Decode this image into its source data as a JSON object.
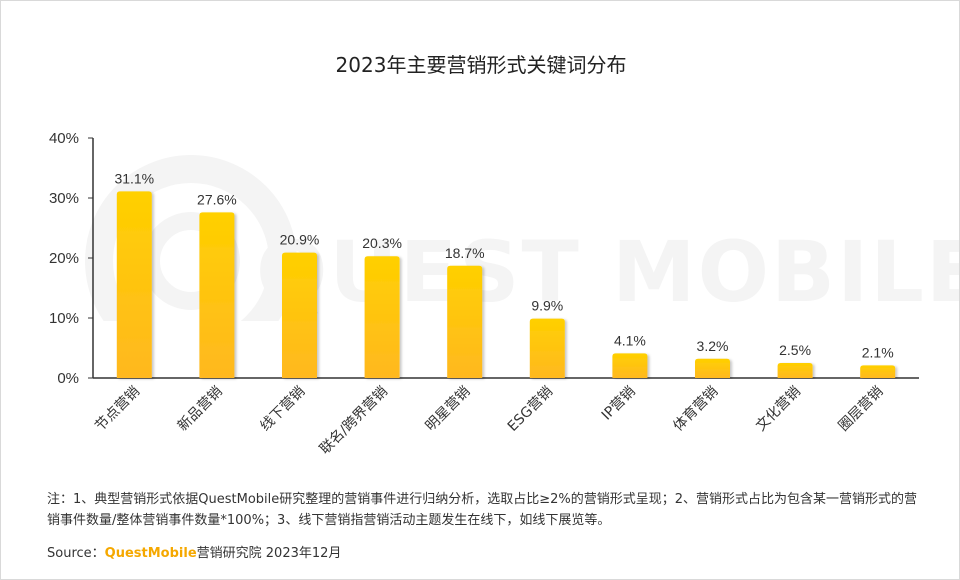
{
  "chart_data": {
    "type": "bar",
    "title": "2023年主要营销形式关键词分布",
    "categories": [
      "节点营销",
      "新品营销",
      "线下营销",
      "联名/跨界营销",
      "明星营销",
      "ESG营销",
      "IP营销",
      "体育营销",
      "文化营销",
      "圈层营销"
    ],
    "values": [
      31.1,
      27.6,
      20.9,
      20.3,
      18.7,
      9.9,
      4.1,
      3.2,
      2.5,
      2.1
    ],
    "value_labels": [
      "31.1%",
      "27.6%",
      "20.9%",
      "20.3%",
      "18.7%",
      "9.9%",
      "4.1%",
      "3.2%",
      "2.5%",
      "2.1%"
    ],
    "y_ticks": [
      0,
      10,
      20,
      30,
      40
    ],
    "y_tick_labels": [
      "0%",
      "10%",
      "20%",
      "30%",
      "40%"
    ],
    "ylim": [
      0,
      40
    ],
    "xlabel": "",
    "ylabel": "",
    "grid": false,
    "bar_color_top": "#ffd000",
    "bar_color_bottom": "#ffb820"
  },
  "watermark": "QUEST MOBILE",
  "note": "注：1、典型营销形式依据QuestMobile研究整理的营销事件进行归纳分析，选取占比≥2%的营销形式呈现；2、营销形式占比为包含某一营销形式的营销事件数量/整体营销事件数量*100%；3、线下营销指营销活动主题发生在线下，如线下展览等。",
  "source": {
    "label": "Source：",
    "brand": "QuestMobile",
    "rest": "营销研究院 2023年12月"
  }
}
